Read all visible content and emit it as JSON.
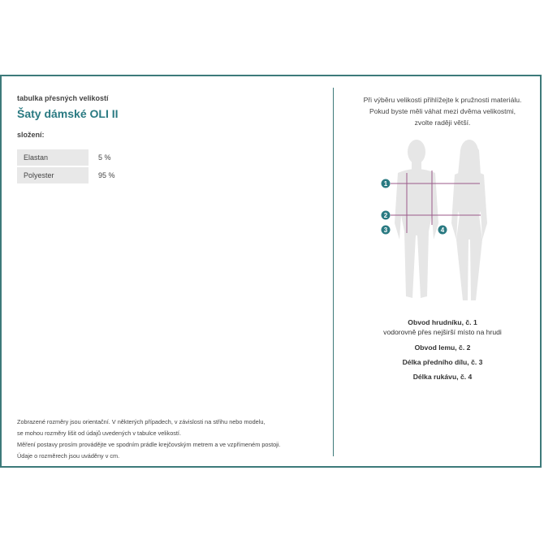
{
  "header": {
    "subtitle": "tabulka přesných velikostí",
    "title": "Šaty dámské OLI II"
  },
  "composition": {
    "label": "složení:",
    "items": [
      {
        "material": "Elastan",
        "percent": "5 %"
      },
      {
        "material": "Polyester",
        "percent": "95 %"
      }
    ]
  },
  "notes": [
    "Zobrazené rozměry jsou orientační. V některých případech, v závislosti na střihu nebo modelu,",
    "se mohou rozměry lišit od údajů uvedených v tabulce velikostí.",
    "Měření postavy prosím provádějte ve spodním prádle krejčovským metrem a ve vzpřímeném postoji.",
    "Údaje o rozměrech jsou uváděny v cm."
  ],
  "hint": [
    "Při výběru velikosti přihlížejte k pružnosti materiálu.",
    "Pokud byste měli váhat mezi dvěma velikostmi,",
    "zvolte raději větší."
  ],
  "figure": {
    "markers": [
      "1",
      "2",
      "3",
      "4"
    ],
    "accent": "#2a7a82",
    "line_color": "#9b5a8a"
  },
  "measurements": [
    {
      "title": "Obvod hrudníku, č. 1",
      "desc": "vodorovně přes nejširší místo na hrudi"
    },
    {
      "title": "Obvod lemu, č. 2"
    },
    {
      "title": "Délka předního dílu, č. 3"
    },
    {
      "title": "Délka rukávu, č. 4"
    }
  ]
}
